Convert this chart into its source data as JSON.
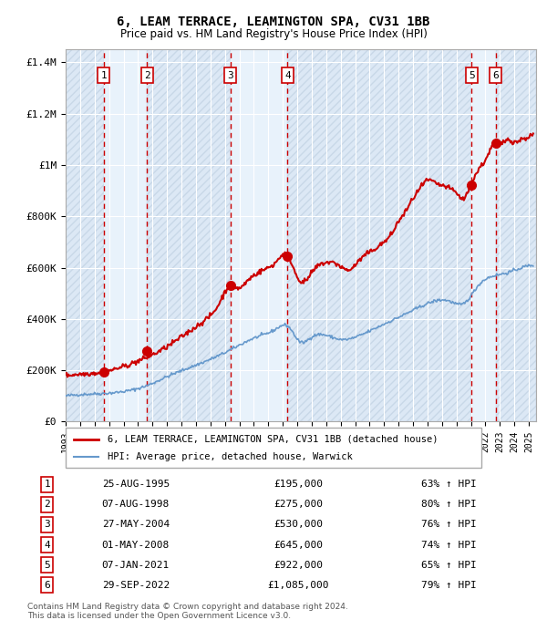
{
  "title": "6, LEAM TERRACE, LEAMINGTON SPA, CV31 1BB",
  "subtitle": "Price paid vs. HM Land Registry's House Price Index (HPI)",
  "sale_dates": [
    "1995-08-25",
    "1998-08-07",
    "2004-05-27",
    "2008-05-01",
    "2021-01-07",
    "2022-09-29"
  ],
  "sale_prices": [
    195000,
    275000,
    530000,
    645000,
    922000,
    1085000
  ],
  "sale_labels": [
    "1",
    "2",
    "3",
    "4",
    "5",
    "6"
  ],
  "sale_date_labels": [
    "25-AUG-1995",
    "07-AUG-1998",
    "27-MAY-2004",
    "01-MAY-2008",
    "07-JAN-2021",
    "29-SEP-2022"
  ],
  "sale_pct": [
    "63%",
    "80%",
    "76%",
    "74%",
    "65%",
    "79%"
  ],
  "sale_price_labels": [
    "£195,000",
    "£275,000",
    "£530,000",
    "£645,000",
    "£922,000",
    "£1,085,000"
  ],
  "hpi_line_color": "#6699cc",
  "property_line_color": "#cc0000",
  "dot_color": "#cc0000",
  "vline_color": "#cc0000",
  "band_colors": [
    "#d0e0f0",
    "#e8e8e8"
  ],
  "ylabel_ticks": [
    "£0",
    "£200K",
    "£400K",
    "£600K",
    "£800K",
    "£1M",
    "£1.2M",
    "£1.4M"
  ],
  "ylabel_values": [
    0,
    200000,
    400000,
    600000,
    800000,
    1000000,
    1200000,
    1400000
  ],
  "ylim": [
    0,
    1450000
  ],
  "xlim_start": 1993.0,
  "xlim_end": 2025.5,
  "legend_property": "6, LEAM TERRACE, LEAMINGTON SPA, CV31 1BB (detached house)",
  "legend_hpi": "HPI: Average price, detached house, Warwick",
  "footnote": "Contains HM Land Registry data © Crown copyright and database right 2024.\nThis data is licensed under the Open Government Licence v3.0.",
  "background_chart": "#eaf2fb",
  "background_hatch": "#dde8f0"
}
